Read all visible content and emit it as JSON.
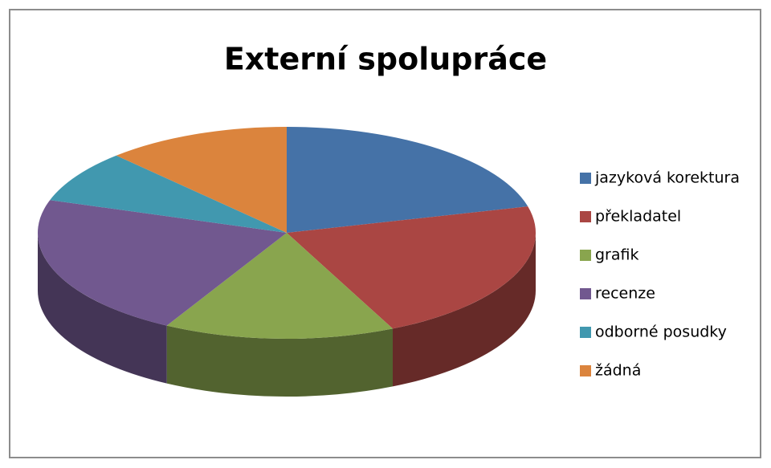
{
  "chart_data": {
    "type": "pie",
    "title": "Externí spolupráce",
    "categories": [
      "jazyková korektura",
      "překladatel",
      "grafik",
      "recenze",
      "odborné posudky",
      "žádná"
    ],
    "values": [
      21,
      22,
      15,
      22,
      8,
      12
    ],
    "colors": [
      "#4572a7",
      "#aa4643",
      "#89a54e",
      "#71588f",
      "#4198af",
      "#db843d"
    ],
    "legend": "right"
  }
}
